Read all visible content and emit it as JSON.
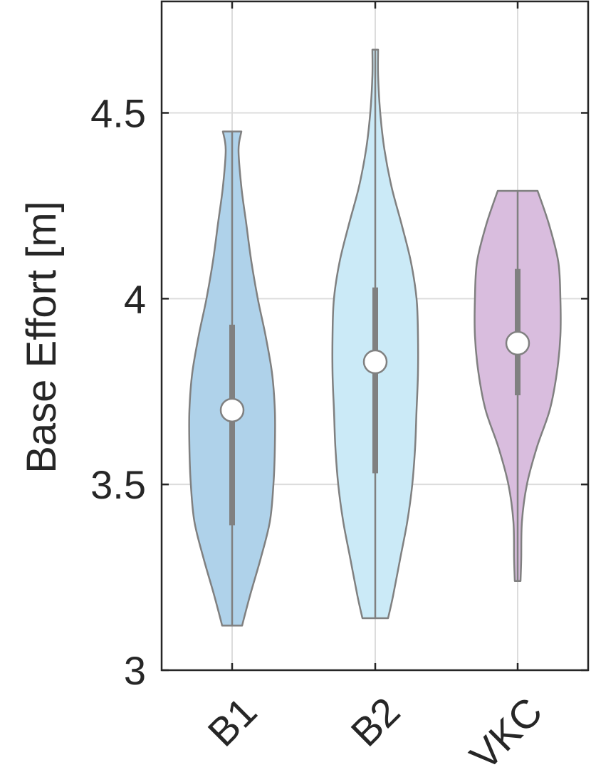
{
  "chart_data": {
    "type": "violin",
    "title": "",
    "xlabel": "",
    "ylabel": "Base Effort [m]",
    "ylim": [
      3,
      4.8
    ],
    "yticks": [
      "3",
      "3.5",
      "4",
      "4.5"
    ],
    "grid": true,
    "categories": [
      "B1",
      "B2",
      "VKC"
    ],
    "series": [
      {
        "category": "B1",
        "color": "#AFD2EA",
        "min": 3.12,
        "max": 4.45,
        "q1": 3.39,
        "median": 3.7,
        "q3": 3.93,
        "density_profile": [
          [
            3.12,
            0.14
          ],
          [
            3.2,
            0.25
          ],
          [
            3.3,
            0.4
          ],
          [
            3.4,
            0.53
          ],
          [
            3.5,
            0.58
          ],
          [
            3.6,
            0.6
          ],
          [
            3.7,
            0.6
          ],
          [
            3.8,
            0.56
          ],
          [
            3.9,
            0.47
          ],
          [
            4.0,
            0.36
          ],
          [
            4.1,
            0.27
          ],
          [
            4.2,
            0.2
          ],
          [
            4.3,
            0.13
          ],
          [
            4.4,
            0.09
          ],
          [
            4.45,
            0.13
          ]
        ]
      },
      {
        "category": "B2",
        "color": "#CBEAF7",
        "min": 3.14,
        "max": 4.67,
        "q1": 3.53,
        "median": 3.83,
        "q3": 4.03,
        "density_profile": [
          [
            3.14,
            0.18
          ],
          [
            3.2,
            0.25
          ],
          [
            3.3,
            0.35
          ],
          [
            3.4,
            0.45
          ],
          [
            3.5,
            0.52
          ],
          [
            3.6,
            0.56
          ],
          [
            3.7,
            0.58
          ],
          [
            3.8,
            0.6
          ],
          [
            3.9,
            0.6
          ],
          [
            4.0,
            0.58
          ],
          [
            4.1,
            0.5
          ],
          [
            4.2,
            0.37
          ],
          [
            4.3,
            0.23
          ],
          [
            4.4,
            0.13
          ],
          [
            4.5,
            0.07
          ],
          [
            4.6,
            0.04
          ],
          [
            4.67,
            0.04
          ]
        ]
      },
      {
        "category": "VKC",
        "color": "#D9BDDE",
        "min": 3.24,
        "max": 4.29,
        "q1": 3.74,
        "median": 3.88,
        "q3": 4.08,
        "density_profile": [
          [
            3.24,
            0.04
          ],
          [
            3.3,
            0.05
          ],
          [
            3.4,
            0.06
          ],
          [
            3.5,
            0.13
          ],
          [
            3.6,
            0.27
          ],
          [
            3.7,
            0.45
          ],
          [
            3.8,
            0.55
          ],
          [
            3.9,
            0.6
          ],
          [
            4.0,
            0.6
          ],
          [
            4.1,
            0.57
          ],
          [
            4.2,
            0.44
          ],
          [
            4.29,
            0.28
          ]
        ]
      }
    ],
    "colors": {
      "outline": "#808080",
      "box": "#808080",
      "median_fill": "#ffffff",
      "grid": "#dcdcdc",
      "axis": "#262626"
    }
  }
}
